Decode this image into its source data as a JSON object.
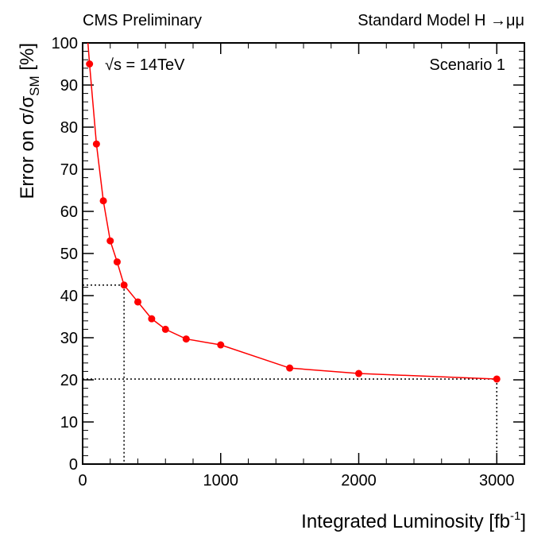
{
  "header": {
    "left": "CMS Preliminary",
    "right": "Standard Model H →μμ"
  },
  "annotations": {
    "energy_sqrt": "√",
    "energy_text": "s = 14TeV",
    "scenario": "Scenario 1"
  },
  "chart_data": {
    "type": "line",
    "xlabel": "Integrated Luminosity [fb",
    "xlabel_sup": "-1",
    "xlabel_end": "]",
    "ylabel_main": "Error on σ/σ",
    "ylabel_sub": "SM",
    "ylabel_end": " [%]",
    "xlim": [
      0,
      3200
    ],
    "ylim": [
      0,
      100
    ],
    "xticks": [
      0,
      1000,
      2000,
      3000
    ],
    "yticks": [
      0,
      10,
      20,
      30,
      40,
      50,
      60,
      70,
      80,
      90,
      100
    ],
    "series": [
      {
        "color": "#ff0000",
        "x": [
          50,
          100,
          150,
          200,
          250,
          300,
          400,
          500,
          600,
          750,
          1000,
          1500,
          2000,
          3000
        ],
        "y": [
          95,
          76,
          62.5,
          53,
          48,
          42.5,
          38.5,
          34.5,
          32,
          29.7,
          28.3,
          22.8,
          21.5,
          20.2
        ]
      }
    ],
    "reference_lines": [
      {
        "x": 300,
        "y": 42.5
      },
      {
        "x": 3000,
        "y": 20.2
      }
    ],
    "grid": false,
    "legend": "none"
  }
}
